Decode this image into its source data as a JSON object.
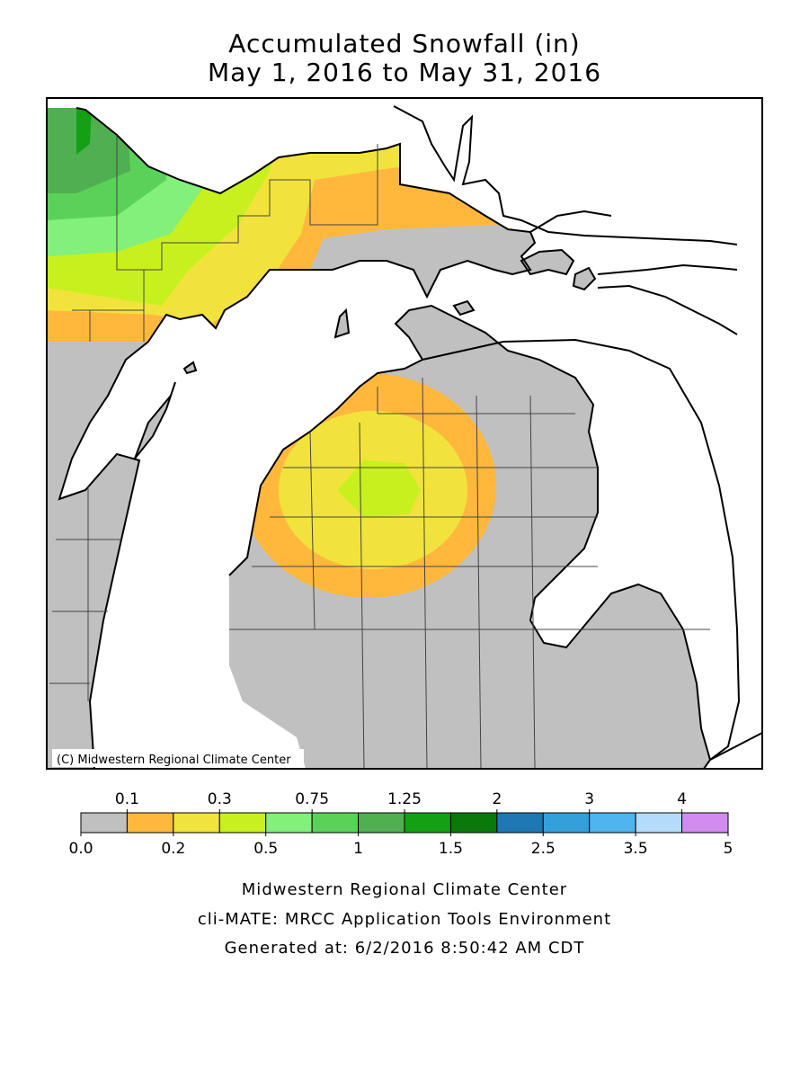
{
  "title": [
    "Accumulated Snowfall (in)",
    "May 1, 2016 to May 31, 2016"
  ],
  "copyright": "(C) Midwestern Regional Climate Center",
  "legend": {
    "colors": [
      "#c0c0c0",
      "#ffb83c",
      "#f2e33c",
      "#c8f01e",
      "#82f07a",
      "#5ad25a",
      "#50af50",
      "#14a014",
      "#0a780a",
      "#1e78b4",
      "#33a0dc",
      "#4fb4f0",
      "#b4dcfa",
      "#d28cf0"
    ],
    "ticks": [
      {
        "value": 0,
        "label": "0.0"
      },
      0.1,
      0.2,
      0.3,
      0.5,
      0.75,
      1,
      1.25,
      1.5,
      2,
      2.5,
      3,
      3.5,
      4,
      5
    ]
  },
  "footer": [
    "Midwestern Regional Climate Center",
    "cli-MATE: MRCC Application Tools Environment",
    "Generated at: 6/2/2016 8:50:42 AM CDT"
  ]
}
